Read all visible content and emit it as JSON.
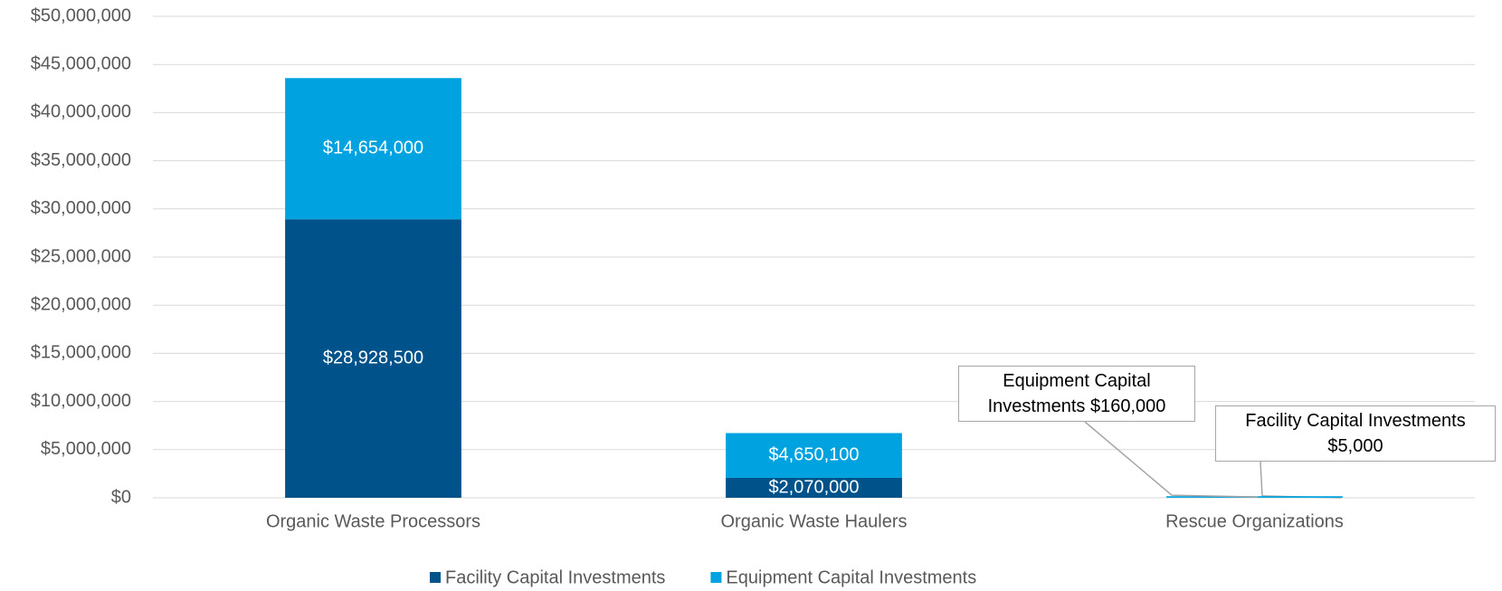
{
  "chart_data": {
    "type": "bar",
    "stacked": true,
    "categories": [
      "Organic Waste Processors",
      "Organic Waste Haulers",
      "Rescue Organizations"
    ],
    "series": [
      {
        "name": "Facility Capital Investments",
        "color": "#00538a",
        "values": [
          28928500,
          2070000,
          5000
        ],
        "value_labels": [
          "$28,928,500",
          "$2,070,000",
          "Facility Capital Investments $5,000"
        ]
      },
      {
        "name": "Equipment Capital Investments",
        "color": "#00a3e0",
        "values": [
          14654000,
          4650100,
          160000
        ],
        "value_labels": [
          "$14,654,000",
          "$4,650,100",
          "Equipment Capital Investments  $160,000"
        ]
      }
    ],
    "ylim": [
      0,
      50000000
    ],
    "yticks": [
      {
        "value": 0,
        "label": "$0"
      },
      {
        "value": 5000000,
        "label": "$5,000,000"
      },
      {
        "value": 10000000,
        "label": "$10,000,000"
      },
      {
        "value": 15000000,
        "label": "$15,000,000"
      },
      {
        "value": 20000000,
        "label": "$20,000,000"
      },
      {
        "value": 25000000,
        "label": "$25,000,000"
      },
      {
        "value": 30000000,
        "label": "$30,000,000"
      },
      {
        "value": 35000000,
        "label": "$35,000,000"
      },
      {
        "value": 40000000,
        "label": "$40,000,000"
      },
      {
        "value": 45000000,
        "label": "$45,000,000"
      },
      {
        "value": 50000000,
        "label": "$50,000,000"
      }
    ],
    "grid": true,
    "legend": "bottom"
  }
}
